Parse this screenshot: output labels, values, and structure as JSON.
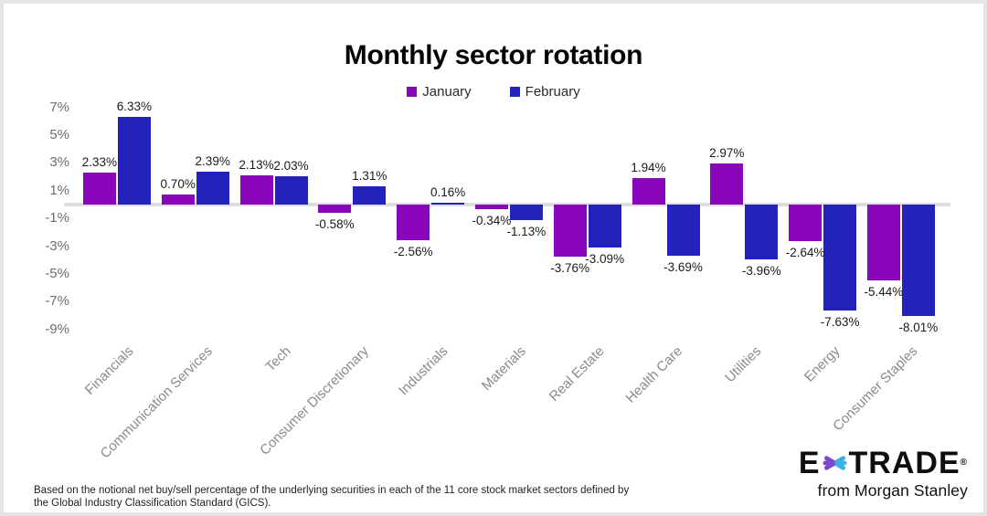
{
  "page": {
    "title": "Monthly sector rotation",
    "footer_line1": "Based on the notional net buy/sell percentage of the underlying securities in each of the 11 core stock market sectors defined by",
    "footer_line2": "the Global Industry Classification Standard (GICS).",
    "logo": {
      "e": "E",
      "trade": "TRADE",
      "reg": "®",
      "tagline": "from Morgan Stanley",
      "star_purple": "#7B4AC8",
      "star_teal": "#3FB0E5"
    }
  },
  "chart_data": {
    "type": "bar",
    "title": "Monthly sector rotation",
    "categories": [
      "Financials",
      "Communication Services",
      "Tech",
      "Consumer Discretionary",
      "Industrials",
      "Materials",
      "Real Estate",
      "Health Care",
      "Utilities",
      "Energy",
      "Consumer Staples"
    ],
    "series": [
      {
        "name": "January",
        "color": "#8A06BB",
        "values": [
          2.33,
          0.7,
          2.13,
          -0.58,
          -2.56,
          -0.34,
          -3.76,
          1.94,
          2.97,
          -2.64,
          -5.44
        ]
      },
      {
        "name": "February",
        "color": "#2323BC",
        "values": [
          6.33,
          2.39,
          2.03,
          1.31,
          0.16,
          -1.13,
          -3.09,
          -3.69,
          -3.96,
          -7.63,
          -8.01
        ]
      }
    ],
    "value_labels": {
      "January": [
        "2.33%",
        "0.70%",
        "2.13%",
        "-0.58%",
        "-2.56%",
        "-0.34%",
        "-3.76%",
        "1.94%",
        "2.97%",
        "-2.64%",
        "-5.44%"
      ],
      "February": [
        "6.33%",
        "2.39%",
        "2.03%",
        "1.31%",
        "0.16%",
        "-1.13%",
        "-3.09%",
        "-3.69%",
        "-3.96%",
        "-7.63%",
        "-8.01%"
      ]
    },
    "yticks": {
      "labels": [
        "7%",
        "5%",
        "3%",
        "1%",
        "-1%",
        "-3%",
        "-5%",
        "-7%",
        "-9%"
      ],
      "values": [
        7,
        5,
        3,
        1,
        -1,
        -3,
        -5,
        -7,
        -9
      ]
    },
    "ylim": [
      -9,
      7
    ],
    "xlabel": "",
    "ylabel": "",
    "grid": false,
    "legend_position": "top-center",
    "baseline_color": "#DCDCDC",
    "axis_text_color": "#6E6E6E",
    "category_text_color": "#8A8A8A",
    "value_text_color": "#1A1A1A"
  }
}
